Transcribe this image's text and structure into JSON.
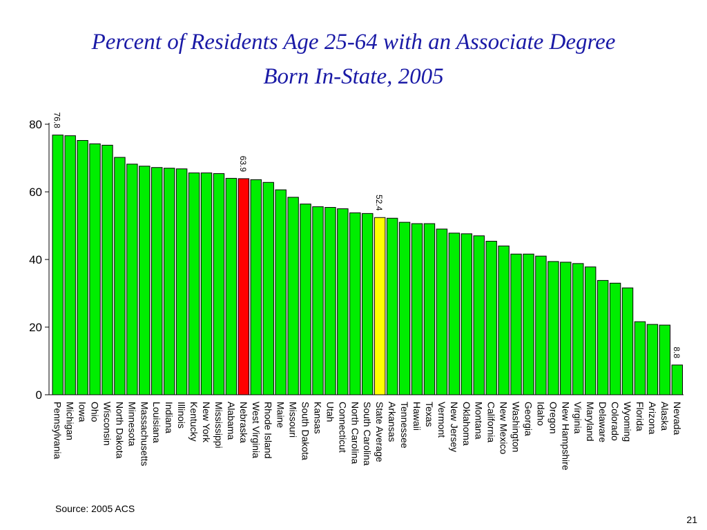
{
  "slide": {
    "title_line1": "Percent of Residents Age 25-64 with an Associate Degree",
    "title_line2": "Born In-State, 2005",
    "source": "Source:  2005 ACS",
    "page_number": "21"
  },
  "colors": {
    "bar_default": "#00ee00",
    "bar_highlight_state": "#ff0000",
    "bar_highlight_average": "#ffff00",
    "title": "#1a1aa6"
  },
  "chart_data": {
    "type": "bar",
    "title": "Percent of Residents Age 25-64 with an Associate Degree Born In-State, 2005",
    "xlabel": "",
    "ylabel": "",
    "ylim": [
      0,
      80
    ],
    "yticks": [
      0,
      20,
      40,
      60,
      80
    ],
    "grid": false,
    "categories": [
      "Pennsylvania",
      "Michigan",
      "Iowa",
      "Ohio",
      "Wisconsin",
      "North Dakota",
      "Minnesota",
      "Massachusetts",
      "Louisiana",
      "Indiana",
      "Illinois",
      "Kentucky",
      "New York",
      "Mississippi",
      "Alabama",
      "Nebraska",
      "West Virginia",
      "Rhode Island",
      "Maine",
      "Missouri",
      "South Dakota",
      "Kansas",
      "Utah",
      "Connecticut",
      "North Carolina",
      "South Carolina",
      "State Average",
      "Arkansas",
      "Tennessee",
      "Hawaii",
      "Texas",
      "Vermont",
      "New Jersey",
      "Oklahoma",
      "Montana",
      "California",
      "New Mexico",
      "Washington",
      "Georgia",
      "Idaho",
      "Oregon",
      "New Hampshire",
      "Virginia",
      "Maryland",
      "Delaware",
      "Colorado",
      "Wyoming",
      "Florida",
      "Arizona",
      "Alaska",
      "Nevada"
    ],
    "values": [
      76.8,
      76.6,
      75.2,
      74.2,
      73.8,
      70.2,
      68.2,
      67.6,
      67.2,
      67.0,
      66.8,
      65.6,
      65.6,
      65.4,
      64.0,
      63.9,
      63.6,
      62.8,
      60.6,
      58.4,
      56.4,
      55.6,
      55.4,
      55.0,
      53.8,
      53.6,
      52.4,
      52.2,
      51.0,
      50.6,
      50.6,
      49.0,
      47.8,
      47.6,
      47.0,
      45.4,
      44.0,
      41.6,
      41.6,
      41.0,
      39.4,
      39.2,
      38.8,
      37.8,
      33.8,
      33.0,
      31.6,
      21.6,
      20.8,
      20.6,
      8.8
    ],
    "highlight": {
      "Nebraska": "state",
      "State Average": "average"
    },
    "data_labels": {
      "Pennsylvania": "76.8",
      "Nebraska": "63.9",
      "State Average": "52.4",
      "Nevada": "8.8"
    }
  }
}
